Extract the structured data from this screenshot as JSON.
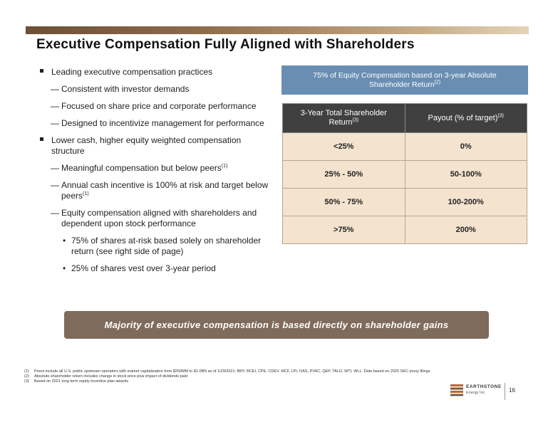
{
  "title": "Executive Compensation Fully Aligned with Shareholders",
  "bullets": {
    "b1": "Leading executive compensation practices",
    "b1_sub": [
      "Consistent with investor demands",
      "Focused on share price and corporate performance",
      "Designed to incentivize management for performance"
    ],
    "b2": "Lower cash, higher equity weighted compensation structure",
    "b2_sub1": "Meaningful compensation but below peers",
    "b2_sub1_sup": "(1)",
    "b2_sub2": "Annual cash incentive is 100% at risk and target below peers",
    "b2_sub2_sup": "(1)",
    "b2_sub3": "Equity compensation aligned with shareholders and dependent upon stock performance",
    "b2_sub3_items": [
      "75% of shares at-risk based solely on shareholder return (see right side of page)",
      "25% of shares vest over 3-year period"
    ]
  },
  "equity_box": {
    "line1": "75% of Equity Compensation based on 3-year Absolute",
    "line2": "Shareholder Return",
    "sup": "(2)"
  },
  "table": {
    "header": {
      "col1": "3-Year Total Shareholder Return",
      "col1_sup": "(3)",
      "col2": "Payout (% of target)",
      "col2_sup": "(3)"
    },
    "rows": [
      {
        "tsr": "<25%",
        "payout": "0%"
      },
      {
        "tsr": "25% - 50%",
        "payout": "50-100%"
      },
      {
        "tsr": "50% - 75%",
        "payout": "100-200%"
      },
      {
        "tsr": ">75%",
        "payout": "200%"
      }
    ]
  },
  "banner": "Majority of executive compensation is based directly on shareholder gains",
  "footnotes": [
    {
      "num": "(1)",
      "text": "Peers include all U.S. public upstream operators with market capitalization from $250MM to $1.0BN as of 1/29/2021: BRY, BCEI, CPE, CDEV, MCF, LPI, OAS, PVAC, QEP, TALO, WTI, WLL. Data based on 2020 SEC proxy filings"
    },
    {
      "num": "(2)",
      "text": "Absolute shareholder return includes change in stock price plus impact of dividends paid"
    },
    {
      "num": "(3)",
      "text": "Based on 2021 long term equity incentive plan awards"
    }
  ],
  "logo": {
    "name": "EARTHSTONE",
    "sub": "Energy Inc."
  },
  "page_number": "16",
  "colors": {
    "header_bar_start": "#6b4f37",
    "blue_box": "#6a8eb3",
    "table_header": "#404040",
    "table_cell": "#f3e3cf",
    "banner": "#7e6b5b",
    "logo_accent": "#c0662b"
  }
}
